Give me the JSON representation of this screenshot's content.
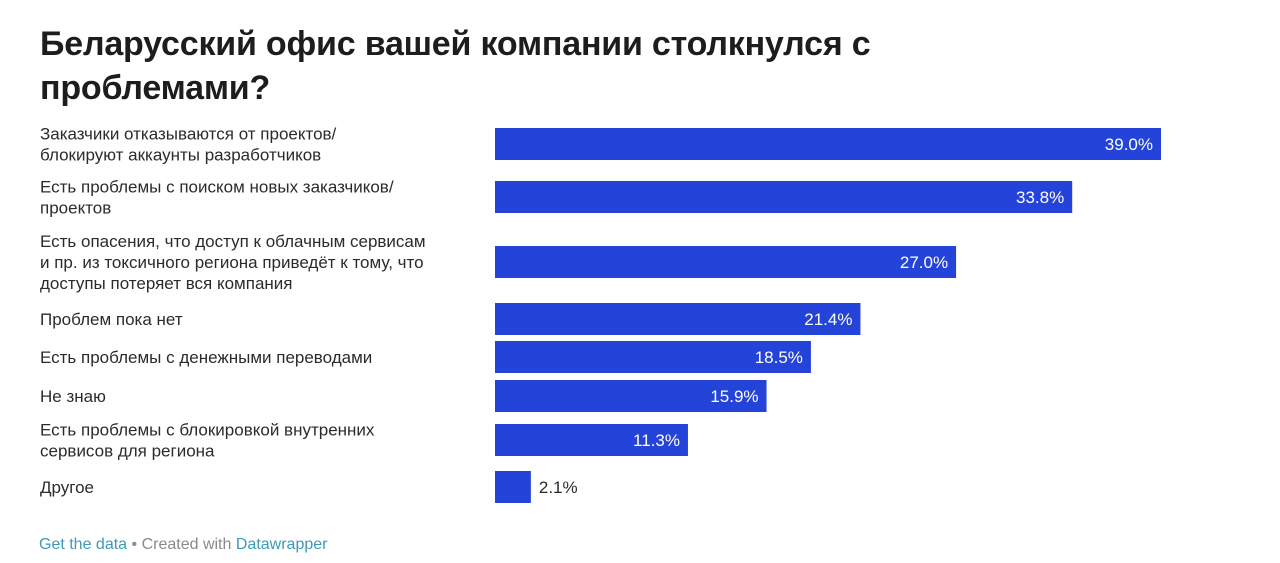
{
  "title": "Беларусский офис вашей компании столкнулся с проблемами?",
  "colors": {
    "bar": "#2443d8",
    "label_inside": "#ffffff",
    "label_outside": "#2b2b2b",
    "link": "#3d9ab8"
  },
  "chart_data": {
    "type": "bar",
    "orientation": "horizontal",
    "unit": "%",
    "xlim": [
      0,
      39.0
    ],
    "grid": false,
    "categories": [
      [
        "Заказчики отказываются от проектов/",
        "блокируют аккаунты разработчиков"
      ],
      [
        "Есть проблемы с поиском новых заказчиков/",
        "проектов"
      ],
      [
        "Есть опасения, что доступ к облачным сервисам",
        "и пр. из токсичного региона приведёт к тому, что",
        "доступы потеряет вся компания"
      ],
      [
        "Проблем пока нет"
      ],
      [
        "Есть проблемы с денежными переводами"
      ],
      [
        "Не знаю"
      ],
      [
        "Есть проблемы с блокировкой внутренних",
        "сервисов для региона"
      ],
      [
        "Другое"
      ]
    ],
    "values": [
      39.0,
      33.8,
      27.0,
      21.4,
      18.5,
      15.9,
      11.3,
      2.1
    ],
    "value_labels": [
      "39.0%",
      "33.8%",
      "27.0%",
      "21.4%",
      "18.5%",
      "15.9%",
      "11.3%",
      "2.1%"
    ]
  },
  "footer": {
    "get_data": "Get the data",
    "separator": "•",
    "created_with": "Created with",
    "tool": "Datawrapper"
  }
}
